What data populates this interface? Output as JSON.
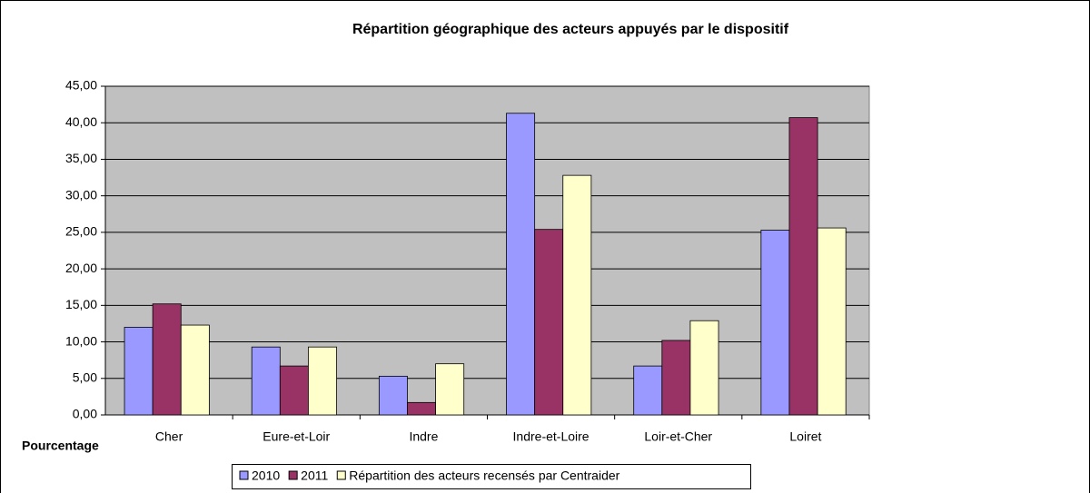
{
  "chart_data": {
    "type": "bar",
    "title": "Répartition géographique des acteurs appuyés par le dispositif",
    "y_label": "Pourcentage",
    "categories": [
      "Cher",
      "Eure-et-Loir",
      "Indre",
      "Indre-et-Loire",
      "Loir-et-Cher",
      "Loiret"
    ],
    "series": [
      {
        "name": "2010",
        "color": "#9999ff",
        "values": [
          12.0,
          9.3,
          5.3,
          41.3,
          6.7,
          25.3
        ]
      },
      {
        "name": "2011",
        "color": "#993366",
        "values": [
          15.2,
          6.7,
          1.7,
          25.4,
          10.2,
          40.7
        ]
      },
      {
        "name": "Répartition des acteurs recensés par Centraider",
        "color": "#ffffcc",
        "values": [
          12.3,
          9.3,
          7.0,
          32.8,
          12.9,
          25.6
        ]
      }
    ],
    "ylim": [
      0,
      45
    ],
    "yticks": [
      {
        "value": 0,
        "label": "0,00"
      },
      {
        "value": 5,
        "label": "5,00"
      },
      {
        "value": 10,
        "label": "10,00"
      },
      {
        "value": 15,
        "label": "15,00"
      },
      {
        "value": 20,
        "label": "20,00"
      },
      {
        "value": 25,
        "label": "25,00"
      },
      {
        "value": 30,
        "label": "30,00"
      },
      {
        "value": 35,
        "label": "35,00"
      },
      {
        "value": 40,
        "label": "40,00"
      },
      {
        "value": 45,
        "label": "45,00"
      }
    ],
    "grid": true,
    "legend": "bottom"
  }
}
